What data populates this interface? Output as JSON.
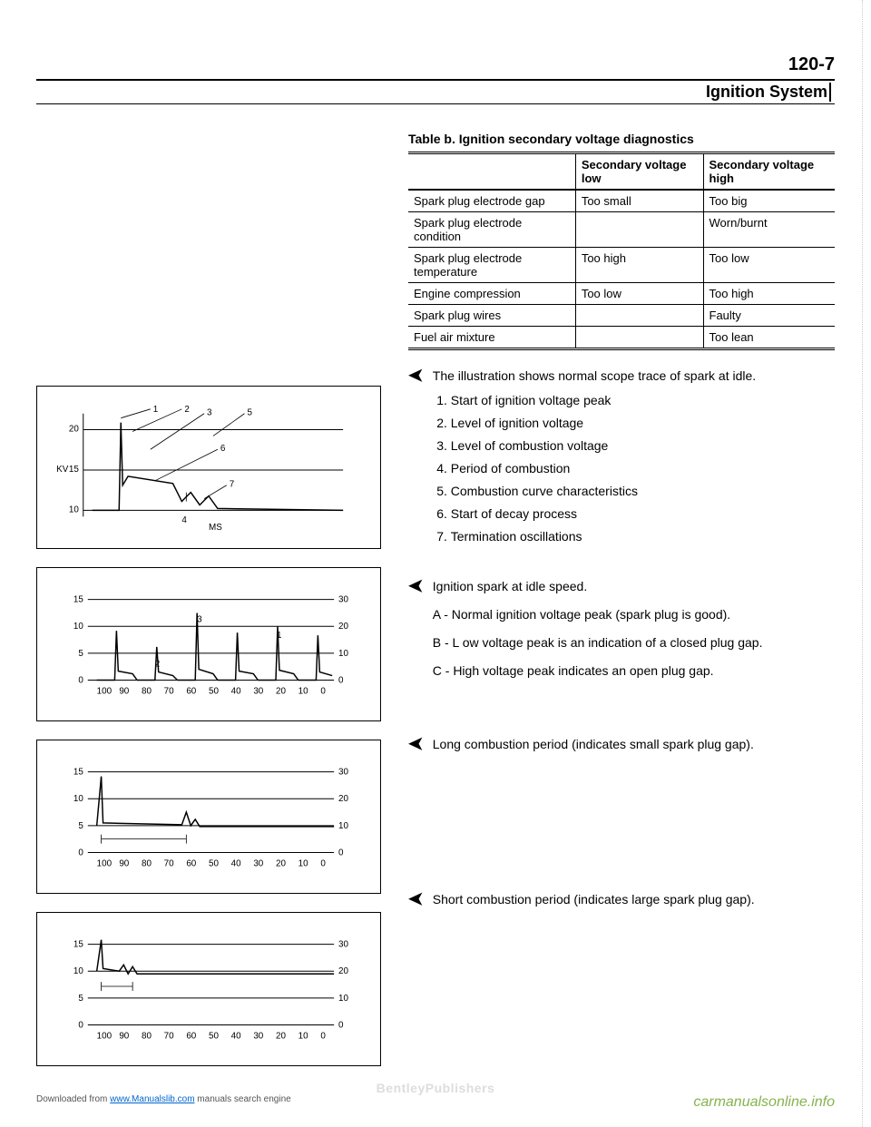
{
  "page_number": "120-7",
  "header_title": "Ignition System",
  "table": {
    "caption": "Table b. Ignition secondary voltage diagnostics",
    "headers": [
      "",
      "Secondary voltage low",
      "Secondary voltage high"
    ],
    "rows": [
      [
        "Spark plug electrode gap",
        "Too small",
        "Too big"
      ],
      [
        "Spark plug electrode condition",
        "",
        "Worn/burnt"
      ],
      [
        "Spark plug electrode temperature",
        "Too high",
        "Too low"
      ],
      [
        "Engine compression",
        "Too low",
        "Too high"
      ],
      [
        "Spark plug wires",
        "",
        "Faulty"
      ],
      [
        "Fuel air mixture",
        "",
        "Too lean"
      ]
    ]
  },
  "section1": {
    "intro": "The illustration shows normal scope trace of spark at idle.",
    "items": [
      "Start of ignition voltage peak",
      "Level of ignition voltage",
      "Level of combustion voltage",
      "Period of combustion",
      "Combustion curve characteristics",
      "Start of decay process",
      "Termination oscillations"
    ]
  },
  "section2": {
    "intro": "Ignition spark at idle speed.",
    "a": "A - Normal ignition voltage peak (spark plug is good).",
    "b": "B - L ow voltage peak is an indication of a closed plug gap.",
    "c": "C - High voltage peak indicates an open plug gap."
  },
  "section3": "Long combustion period (indicates small spark plug gap).",
  "section4": "Short combustion period (indicates large spark plug gap).",
  "fig1": {
    "y_label": "KV",
    "y_ticks": [
      "20",
      "15",
      "10"
    ],
    "x_label": "MS",
    "point_labels": [
      "1",
      "2",
      "3",
      "4",
      "5",
      "6",
      "7"
    ]
  },
  "fig2": {
    "left_ticks": [
      "15",
      "10",
      "5",
      "0"
    ],
    "right_ticks": [
      "30",
      "20",
      "10",
      "0"
    ],
    "x_ticks": [
      "100",
      "90",
      "80",
      "70",
      "60",
      "50",
      "40",
      "30",
      "20",
      "10",
      "0"
    ],
    "labels": [
      "1",
      "2",
      "3"
    ]
  },
  "fig3": {
    "left_ticks": [
      "15",
      "10",
      "5",
      "0"
    ],
    "right_ticks": [
      "30",
      "20",
      "10",
      "0"
    ],
    "x_ticks": [
      "100",
      "90",
      "80",
      "70",
      "60",
      "50",
      "40",
      "30",
      "20",
      "10",
      "0"
    ]
  },
  "fig4": {
    "left_ticks": [
      "15",
      "10",
      "5",
      "0"
    ],
    "right_ticks": [
      "30",
      "20",
      "10",
      "0"
    ],
    "x_ticks": [
      "100",
      "90",
      "80",
      "70",
      "60",
      "50",
      "40",
      "30",
      "20",
      "10",
      "0"
    ]
  },
  "footer": {
    "left_pre": "Downloaded from ",
    "left_link": "www.Manualslib.com",
    "left_post": " manuals search engine",
    "right": "carmanualsonline.info",
    "bentley": "BentleyPublishers"
  }
}
